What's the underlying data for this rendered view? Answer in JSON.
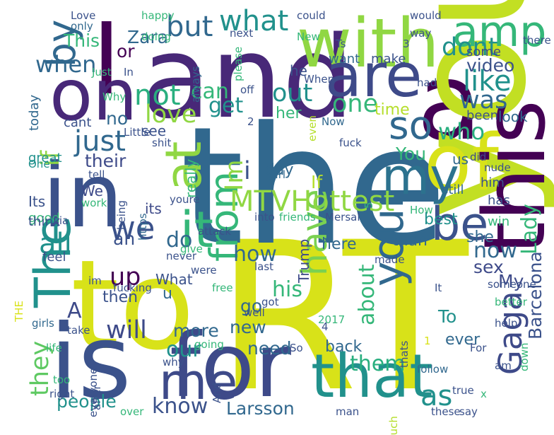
{
  "palette": {
    "viridis_dark": "#440154",
    "viridis_indigo": "#3b528b",
    "viridis_blue": "#31688e",
    "viridis_teal": "#21918c",
    "viridis_green": "#35b779",
    "viridis_lime": "#90d743",
    "viridis_yellow": "#d8e219"
  },
  "words": [
    {
      "text": "RT",
      "color": "#d8e219"
    },
    {
      "text": "the",
      "color": "#31688e"
    },
    {
      "text": "to",
      "color": "#d8e219"
    },
    {
      "text": "a",
      "color": "#440154"
    },
    {
      "text": "and",
      "color": "#482878"
    },
    {
      "text": "I",
      "color": "#440154"
    },
    {
      "text": "you",
      "color": "#c2df23"
    },
    {
      "text": "is",
      "color": "#3b528b"
    },
    {
      "text": "for",
      "color": "#3e4a89"
    },
    {
      "text": "in",
      "color": "#3b528b"
    },
    {
      "text": "of",
      "color": "#d8e219"
    },
    {
      "text": "with",
      "color": "#90d743"
    },
    {
      "text": "are",
      "color": "#3e4a89"
    },
    {
      "text": "this",
      "color": "#440154"
    },
    {
      "text": "on",
      "color": "#482878"
    },
    {
      "text": "that",
      "color": "#21918c"
    },
    {
      "text": "amp",
      "color": "#35b779"
    },
    {
      "text": "my",
      "color": "#2c728e"
    },
    {
      "text": "your",
      "color": "#31688e"
    },
    {
      "text": "it",
      "color": "#35b779"
    },
    {
      "text": "be",
      "color": "#3b528b"
    },
    {
      "text": "me",
      "color": "#3e4a89"
    },
    {
      "text": "The",
      "color": "#21918c"
    },
    {
      "text": "at",
      "color": "#90d743"
    },
    {
      "text": "from",
      "color": "#35b779"
    },
    {
      "text": "have",
      "color": "#7ad151"
    },
    {
      "text": "MTVHottest",
      "color": "#90d743"
    },
    {
      "text": "so",
      "color": "#31688e"
    },
    {
      "text": "Gaga",
      "color": "#3e4a89"
    },
    {
      "text": "as",
      "color": "#21918c"
    },
    {
      "text": "by",
      "color": "#31688e"
    },
    {
      "text": "we",
      "color": "#3b528b"
    },
    {
      "text": "like",
      "color": "#21918c"
    },
    {
      "text": "but",
      "color": "#31688e"
    },
    {
      "text": "what",
      "color": "#21918c"
    },
    {
      "text": "not",
      "color": "#29af7f"
    },
    {
      "text": "dont",
      "color": "#21918c"
    },
    {
      "text": "was",
      "color": "#31688e"
    },
    {
      "text": "just",
      "color": "#31688e"
    },
    {
      "text": "one",
      "color": "#35b779"
    },
    {
      "text": "all",
      "color": "#21918c"
    },
    {
      "text": "they",
      "color": "#5ec962"
    },
    {
      "text": "them",
      "color": "#29af7f"
    },
    {
      "text": "know",
      "color": "#3b528b"
    },
    {
      "text": "will",
      "color": "#3e4a89"
    },
    {
      "text": "our",
      "color": "#21918c"
    },
    {
      "text": "about",
      "color": "#35b779"
    },
    {
      "text": "Lady",
      "color": "#35b779"
    },
    {
      "text": "Barcelona",
      "color": "#3b528b"
    },
    {
      "text": "Larsson",
      "color": "#31688e"
    },
    {
      "text": "people",
      "color": "#21918c"
    },
    {
      "text": "up",
      "color": "#440154"
    },
    {
      "text": "love",
      "color": "#90d743"
    },
    {
      "text": "who",
      "color": "#29af7f"
    },
    {
      "text": "when",
      "color": "#31688e"
    },
    {
      "text": "out",
      "color": "#21918c"
    },
    {
      "text": "can",
      "color": "#35b779"
    },
    {
      "text": "if",
      "color": "#90d743"
    },
    {
      "text": "get",
      "color": "#21918c"
    },
    {
      "text": "Im",
      "color": "#90d743"
    },
    {
      "text": "i",
      "color": "#3b528b"
    },
    {
      "text": "do",
      "color": "#31688e"
    },
    {
      "text": "an",
      "color": "#3b528b"
    },
    {
      "text": "how",
      "color": "#31688e"
    },
    {
      "text": "now",
      "color": "#31688e"
    },
    {
      "text": "A",
      "color": "#3e4a89"
    },
    {
      "text": "more",
      "color": "#31688e"
    },
    {
      "text": "new",
      "color": "#31688e"
    },
    {
      "text": "need",
      "color": "#31688e"
    },
    {
      "text": "his",
      "color": "#35b779"
    },
    {
      "text": "go",
      "color": "#31688e"
    },
    {
      "text": "To",
      "color": "#21918c"
    },
    {
      "text": "sex",
      "color": "#3e4a89"
    },
    {
      "text": "My",
      "color": "#3e4a89"
    },
    {
      "text": "ever",
      "color": "#31688e"
    },
    {
      "text": "back",
      "color": "#31688e"
    },
    {
      "text": "Zara",
      "color": "#31688e"
    },
    {
      "text": "This",
      "color": "#35b779"
    },
    {
      "text": "or",
      "color": "#440154"
    },
    {
      "text": "only",
      "color": "#31688e"
    },
    {
      "text": "want",
      "color": "#31688e"
    },
    {
      "text": "make",
      "color": "#3b528b"
    },
    {
      "text": "some",
      "color": "#3e4a89"
    },
    {
      "text": "video",
      "color": "#3b528b"
    },
    {
      "text": "time",
      "color": "#b5de2b"
    },
    {
      "text": "her",
      "color": "#35b779"
    },
    {
      "text": "look",
      "color": "#31688e"
    },
    {
      "text": "been",
      "color": "#3b528b"
    },
    {
      "text": "You",
      "color": "#35b779"
    },
    {
      "text": "us",
      "color": "#31688e"
    },
    {
      "text": "did",
      "color": "#3e4a89"
    },
    {
      "text": "him",
      "color": "#3b528b"
    },
    {
      "text": "has",
      "color": "#3b528b"
    },
    {
      "text": "still",
      "color": "#31688e"
    },
    {
      "text": "win",
      "color": "#35b779"
    },
    {
      "text": "How",
      "color": "#35b779"
    },
    {
      "text": "best",
      "color": "#21918c"
    },
    {
      "text": "she",
      "color": "#31688e"
    },
    {
      "text": "than",
      "color": "#31688e"
    },
    {
      "text": "here",
      "color": "#31688e"
    },
    {
      "text": "made",
      "color": "#3b528b"
    },
    {
      "text": "last",
      "color": "#3b528b"
    },
    {
      "text": "Trump",
      "color": "#3e4a89"
    },
    {
      "text": "If",
      "color": "#b5de2b"
    },
    {
      "text": "day",
      "color": "#31688e"
    },
    {
      "text": "their",
      "color": "#3e4a89"
    },
    {
      "text": "see",
      "color": "#3b528b"
    },
    {
      "text": "its",
      "color": "#3e4a89"
    },
    {
      "text": "really",
      "color": "#35b779"
    },
    {
      "text": "were",
      "color": "#3b528b"
    },
    {
      "text": "never",
      "color": "#3b528b"
    },
    {
      "text": "give",
      "color": "#35b779"
    },
    {
      "text": "What",
      "color": "#3b528b"
    },
    {
      "text": "u",
      "color": "#31688e"
    },
    {
      "text": "then",
      "color": "#3b528b"
    },
    {
      "text": "im",
      "color": "#3b528b"
    },
    {
      "text": "feel",
      "color": "#3b528b"
    },
    {
      "text": "Its",
      "color": "#3b528b"
    },
    {
      "text": "good",
      "color": "#35b779"
    },
    {
      "text": "think",
      "color": "#3b528b"
    },
    {
      "text": "via",
      "color": "#3b528b"
    },
    {
      "text": "We",
      "color": "#3e4a89"
    },
    {
      "text": "work",
      "color": "#35b779"
    },
    {
      "text": "being",
      "color": "#3b528b"
    },
    {
      "text": "https",
      "color": "#31688e"
    },
    {
      "text": "great",
      "color": "#21918c"
    },
    {
      "text": "no",
      "color": "#31688e"
    },
    {
      "text": "cant",
      "color": "#3b528b"
    },
    {
      "text": "today",
      "color": "#31688e"
    },
    {
      "text": "Little",
      "color": "#3b528b"
    },
    {
      "text": "shit",
      "color": "#3b528b"
    },
    {
      "text": "One",
      "color": "#21918c"
    },
    {
      "text": "tell",
      "color": "#3b528b"
    },
    {
      "text": "fuck",
      "color": "#3b528b"
    },
    {
      "text": "nude",
      "color": "#3b528b"
    },
    {
      "text": "girl",
      "color": "#31688e"
    },
    {
      "text": "even",
      "color": "#b5de2b"
    },
    {
      "text": "Now",
      "color": "#31688e"
    },
    {
      "text": "off",
      "color": "#3b528b"
    },
    {
      "text": "had",
      "color": "#3b528b"
    },
    {
      "text": "When",
      "color": "#3b528b"
    },
    {
      "text": "he",
      "color": "#3b528b"
    },
    {
      "text": "In",
      "color": "#3b528b"
    },
    {
      "text": "Just",
      "color": "#35b779"
    },
    {
      "text": "always",
      "color": "#31688e"
    },
    {
      "text": "please",
      "color": "#35b779"
    },
    {
      "text": "next",
      "color": "#3b528b"
    },
    {
      "text": "doing",
      "color": "#35b779"
    },
    {
      "text": "Why",
      "color": "#35b779"
    },
    {
      "text": "New",
      "color": "#35b779"
    },
    {
      "text": "Ts",
      "color": "#3b528b"
    },
    {
      "text": "way",
      "color": "#3b528b"
    },
    {
      "text": "there",
      "color": "#3b528b"
    },
    {
      "text": "would",
      "color": "#3b528b"
    },
    {
      "text": "could",
      "color": "#3b528b"
    },
    {
      "text": "happy",
      "color": "#35b779"
    },
    {
      "text": "Love",
      "color": "#3b528b"
    },
    {
      "text": "youre",
      "color": "#3b528b"
    },
    {
      "text": "attack",
      "color": "#3b528b"
    },
    {
      "text": "into",
      "color": "#3b528b"
    },
    {
      "text": "friends",
      "color": "#35b779"
    },
    {
      "text": "Mersal",
      "color": "#3b528b"
    },
    {
      "text": "fucking",
      "color": "#3b528b"
    },
    {
      "text": "THE",
      "color": "#d8e219"
    },
    {
      "text": "free",
      "color": "#35b779"
    },
    {
      "text": "girls",
      "color": "#31688e"
    },
    {
      "text": "take",
      "color": "#3b528b"
    },
    {
      "text": "life",
      "color": "#35b779"
    },
    {
      "text": "too",
      "color": "#35b779"
    },
    {
      "text": "right",
      "color": "#3b528b"
    },
    {
      "text": "everyone",
      "color": "#3b528b"
    },
    {
      "text": "after",
      "color": "#3b528b"
    },
    {
      "text": "why",
      "color": "#3b528b"
    },
    {
      "text": "going",
      "color": "#35b779"
    },
    {
      "text": "And",
      "color": "#3b528b"
    },
    {
      "text": "over",
      "color": "#35b779"
    },
    {
      "text": "well",
      "color": "#3b528b"
    },
    {
      "text": "got",
      "color": "#3b528b"
    },
    {
      "text": "So",
      "color": "#3b528b"
    },
    {
      "text": "2017",
      "color": "#35b779"
    },
    {
      "text": "follow",
      "color": "#31688e"
    },
    {
      "text": "thats",
      "color": "#3b528b"
    },
    {
      "text": "man",
      "color": "#3b528b"
    },
    {
      "text": "much",
      "color": "#b5de2b"
    },
    {
      "text": "true",
      "color": "#3b528b"
    },
    {
      "text": "these",
      "color": "#3b528b"
    },
    {
      "text": "say",
      "color": "#3b528b"
    },
    {
      "text": "For",
      "color": "#3b528b"
    },
    {
      "text": "am",
      "color": "#3b528b"
    },
    {
      "text": "down",
      "color": "#35b779"
    },
    {
      "text": "help",
      "color": "#3b528b"
    },
    {
      "text": "better",
      "color": "#35b779"
    },
    {
      "text": "someone",
      "color": "#3b528b"
    },
    {
      "text": "It",
      "color": "#3b528b"
    },
    {
      "text": "3",
      "color": "#3b528b"
    },
    {
      "text": "2",
      "color": "#3b528b"
    },
    {
      "text": "5",
      "color": "#35b779"
    },
    {
      "text": "4",
      "color": "#3b528b"
    },
    {
      "text": "1",
      "color": "#d8e219"
    },
    {
      "text": "x",
      "color": "#35b779"
    }
  ]
}
